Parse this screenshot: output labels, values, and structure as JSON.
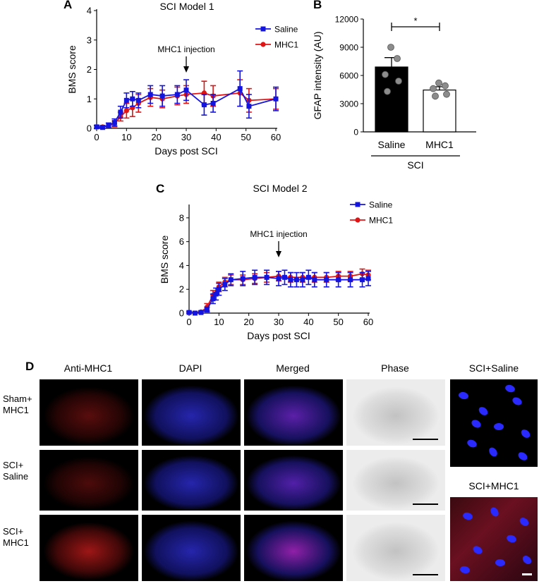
{
  "panels": {
    "A": "A",
    "B": "B",
    "C": "C",
    "D": "D"
  },
  "chart_data": [
    {
      "id": "A",
      "type": "line",
      "title": "SCI Model 1",
      "xlabel": "Days post SCI",
      "ylabel": "BMS score",
      "xlim": [
        0,
        60
      ],
      "ylim": [
        0,
        4
      ],
      "xticks": [
        "0",
        "10",
        "20",
        "30",
        "40",
        "50",
        "60"
      ],
      "yticks": [
        "0",
        "1",
        "2",
        "3",
        "4"
      ],
      "annotation": "MHC1 injection",
      "annotation_x": 30,
      "legend_position": "top-right",
      "series": [
        {
          "name": "Saline",
          "color": "#1414e0",
          "marker": "square",
          "x": [
            0,
            2,
            4,
            6,
            8,
            10,
            12,
            14,
            18,
            22,
            27,
            30,
            36,
            39,
            48,
            51,
            60
          ],
          "y": [
            0.05,
            0.03,
            0.1,
            0.2,
            0.55,
            0.95,
            1.0,
            0.95,
            1.15,
            1.1,
            1.15,
            1.3,
            0.8,
            0.85,
            1.35,
            0.75,
            1.0
          ],
          "err": [
            0.05,
            0.05,
            0.08,
            0.12,
            0.2,
            0.25,
            0.25,
            0.25,
            0.3,
            0.35,
            0.3,
            0.35,
            0.35,
            0.3,
            0.6,
            0.4,
            0.4
          ]
        },
        {
          "name": "MHC1",
          "color": "#e01414",
          "marker": "circle",
          "x": [
            0,
            2,
            4,
            6,
            8,
            10,
            12,
            14,
            18,
            22,
            27,
            30,
            36,
            39,
            48,
            51,
            60
          ],
          "y": [
            0.05,
            0.05,
            0.1,
            0.15,
            0.4,
            0.6,
            0.7,
            0.85,
            1.05,
            1.0,
            1.1,
            1.15,
            1.2,
            1.1,
            1.2,
            0.95,
            1.0
          ],
          "err": [
            0.05,
            0.05,
            0.08,
            0.1,
            0.15,
            0.25,
            0.3,
            0.3,
            0.3,
            0.3,
            0.3,
            0.3,
            0.4,
            0.35,
            0.45,
            0.4,
            0.35
          ]
        }
      ]
    },
    {
      "id": "B",
      "type": "bar",
      "title": "",
      "ylabel": "GFAP intensity (AU)",
      "xlabel": "SCI",
      "categories": [
        "Saline",
        "MHC1"
      ],
      "values": [
        6900,
        4450
      ],
      "errors": [
        1000,
        350
      ],
      "bar_colors": [
        "#000000",
        "#ffffff"
      ],
      "ylim": [
        0,
        12000
      ],
      "yticks": [
        "0",
        "3000",
        "6000",
        "9000",
        "12000"
      ],
      "points": [
        [
          9000,
          7800,
          6100,
          5400,
          4300
        ],
        [
          5200,
          4900,
          4600,
          4000,
          3800
        ]
      ],
      "significance": "*"
    },
    {
      "id": "C",
      "type": "line",
      "title": "SCI Model 2",
      "xlabel": "Days post SCI",
      "ylabel": "BMS score",
      "xlim": [
        0,
        60
      ],
      "ylim": [
        0,
        9
      ],
      "xticks": [
        "0",
        "10",
        "20",
        "30",
        "40",
        "50",
        "60"
      ],
      "yticks": [
        "0",
        "2",
        "4",
        "6",
        "8"
      ],
      "annotation": "MHC1 injection",
      "annotation_x": 30,
      "legend_position": "top-right",
      "series": [
        {
          "name": "Saline",
          "color": "#1414e0",
          "marker": "square",
          "x": [
            0,
            2,
            4,
            6,
            8,
            9,
            10,
            12,
            14,
            18,
            22,
            26,
            30,
            32,
            34,
            36,
            38,
            40,
            42,
            46,
            50,
            54,
            58,
            60
          ],
          "y": [
            0.05,
            0.0,
            0.05,
            0.3,
            1.2,
            1.6,
            2.0,
            2.4,
            2.8,
            2.9,
            3.0,
            3.0,
            2.9,
            3.0,
            2.8,
            2.8,
            2.8,
            3.0,
            2.8,
            2.8,
            2.8,
            2.8,
            2.8,
            2.9
          ],
          "err": [
            0.1,
            0.1,
            0.1,
            0.2,
            0.4,
            0.5,
            0.5,
            0.5,
            0.5,
            0.6,
            0.6,
            0.6,
            0.6,
            0.6,
            0.6,
            0.6,
            0.6,
            0.6,
            0.6,
            0.6,
            0.6,
            0.6,
            0.6,
            0.6
          ]
        },
        {
          "name": "MHC1",
          "color": "#e01414",
          "marker": "circle",
          "x": [
            0,
            2,
            4,
            6,
            8,
            10,
            12,
            14,
            18,
            22,
            26,
            30,
            34,
            38,
            42,
            46,
            50,
            54,
            58,
            60
          ],
          "y": [
            0.05,
            0.0,
            0.1,
            0.5,
            1.5,
            2.2,
            2.6,
            2.8,
            2.8,
            2.9,
            3.0,
            3.1,
            3.0,
            3.0,
            3.0,
            3.0,
            3.1,
            3.1,
            3.3,
            3.2
          ],
          "err": [
            0.1,
            0.1,
            0.1,
            0.3,
            0.4,
            0.4,
            0.4,
            0.4,
            0.4,
            0.4,
            0.4,
            0.4,
            0.4,
            0.4,
            0.4,
            0.4,
            0.4,
            0.4,
            0.4,
            0.4
          ]
        }
      ]
    }
  ],
  "micrographs": {
    "column_headers": [
      "Anti-MHC1",
      "DAPI",
      "Merged",
      "Phase"
    ],
    "row_labels": [
      {
        "line1": "Sham+",
        "line2": "MHC1"
      },
      {
        "line1": "SCI+",
        "line2": "Saline"
      },
      {
        "line1": "SCI+",
        "line2": "MHC1"
      }
    ],
    "inset_labels": [
      "SCI+Saline",
      "SCI+MHC1"
    ],
    "colors": {
      "red_channel": "#e02020",
      "blue_channel": "#2a2aff",
      "merged": "#8a2ad0",
      "phase": "#d8d8d8",
      "background": "#000000"
    }
  }
}
